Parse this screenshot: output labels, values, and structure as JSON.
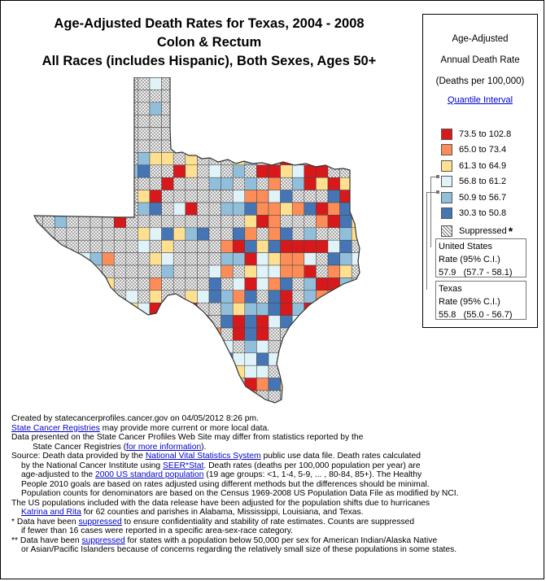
{
  "titles": {
    "line1": "Age-Adjusted Death Rates for Texas, 2004 - 2008",
    "line2": "Colon & Rectum",
    "line3": "All Races (includes Hispanic), Both Sexes, Ages 50+"
  },
  "legend": {
    "heading1": "Age-Adjusted",
    "heading2": "Annual Death Rate",
    "heading3": "(Deaths per 100,000)",
    "quantile_link": "Quantile Interval",
    "ranges": [
      {
        "label": "73.5  to  102.8",
        "color": "#d7191c"
      },
      {
        "label": "65.0  to  73.4",
        "color": "#fc8d59"
      },
      {
        "label": "61.3  to  64.9",
        "color": "#fee090"
      },
      {
        "label": "56.8  to  61.2",
        "color": "#e0f3f8"
      },
      {
        "label": "50.9  to  56.7",
        "color": "#91bfdb"
      },
      {
        "label": "30.3  to  50.8",
        "color": "#4575b4"
      }
    ],
    "suppressed_label": "Suppressed",
    "suppressed_mark": "*",
    "us": {
      "title": "United States",
      "rate_label": "Rate (95% C.I.)",
      "rate": "57.9",
      "ci": "(57.7 - 58.1)"
    },
    "tx": {
      "title": "Texas",
      "rate_label": "Rate (95% C.I.)",
      "rate": "55.8",
      "ci": "(55.0 - 56.7)"
    }
  },
  "map": {
    "hatch_color": "#777777",
    "border_color": "#333333"
  },
  "footer": {
    "created": "Created by statecancerprofiles.cancer.gov on 04/05/2012 8:26 pm.",
    "registries_link": "State Cancer Registries",
    "registries_tail": " may provide more current or more local data.",
    "differ_line1": "Data presented on the State Cancer Profiles Web Site may differ from statistics reported by the",
    "differ_line2_a": "State Cancer Registries (",
    "differ_link": "for more information",
    "differ_line2_b": ").",
    "source_a": "Source: Death data provided by the ",
    "nvss_link": "National Vital Statistics System",
    "source_b": " public use data file. Death rates calculated",
    "nci_a": "by the National Cancer Institute using ",
    "seer_link": "SEER*Stat",
    "nci_b": ". Death rates (deaths per 100,000 population per year) are",
    "age_a": "age-adjusted to the ",
    "std_link": "2000 US standard population",
    "age_b": " (19 age groups: <1, 1-4, 5-9, ... , 80-84, 85+). The Healthy",
    "hp_line": "People 2010 goals are based on rates adjusted using different methods but the    differences should be minimal.",
    "census_line": "Population counts for denominators are based on the Census 1969-2008 US Population Data File as modified by NCI.",
    "hurr_line": "The US populations included with the data release have been adjusted for the population shifts due to hurricanes",
    "katrina_link": "Katrina and Rita",
    "katrina_tail": " for 62 counties and parishes in Alabama, Mississippi, Louisiana, and Texas.",
    "note1_mark": "*",
    "note1_a": "  Data have been  ",
    "supp_link1": "suppressed",
    "note1_b": "  to ensure confidentiality and stability of rate estimates. Counts are suppressed",
    "note1_line2": "if fewer than 16 cases were reported in a specific area-sex-race category.",
    "note2_mark": "**",
    "note2_a": " Data have been  ",
    "supp_link2": "suppressed",
    "note2_b": "  for states with a population below 50,000 per sex for American Indian/Alaska Native",
    "note2_line2": "or Asian/Pacific Islanders because of concerns regarding the relatively small size of these populations in some states."
  }
}
